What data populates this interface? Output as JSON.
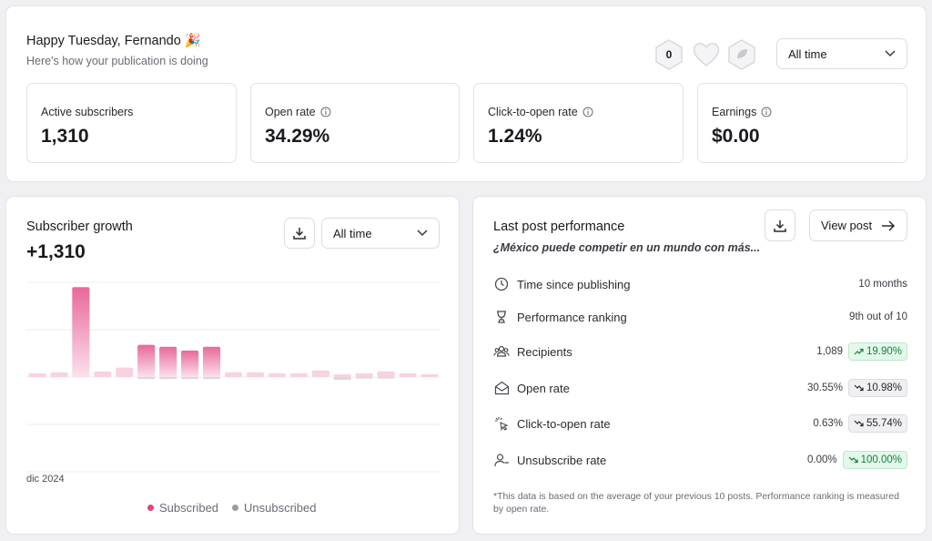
{
  "header": {
    "greeting": "Happy Tuesday, Fernando 🎉",
    "subtitle": "Here's how your publication is doing",
    "badge_count": "0",
    "period": "All time"
  },
  "metrics": [
    {
      "label": "Active subscribers",
      "value": "1,310",
      "info": false
    },
    {
      "label": "Open rate",
      "value": "34.29%",
      "info": true
    },
    {
      "label": "Click-to-open rate",
      "value": "1.24%",
      "info": true
    },
    {
      "label": "Earnings",
      "value": "$0.00",
      "info": true
    }
  ],
  "growth": {
    "title": "Subscriber growth",
    "total": "+1,310",
    "period": "All time",
    "x_label": "dic 2024",
    "legend": [
      {
        "name": "Subscribed",
        "color": "#e0447d"
      },
      {
        "name": "Unsubscribed",
        "color": "#9b9ba6"
      }
    ]
  },
  "chart_data": {
    "type": "bar",
    "values": [
      4,
      5,
      95,
      6,
      10,
      34,
      32,
      28,
      32,
      5,
      5,
      4,
      4,
      7,
      3,
      4,
      6,
      4,
      3
    ],
    "negative_values": [
      0,
      0,
      0,
      0,
      0,
      2,
      2,
      2,
      2,
      0,
      0,
      0,
      0,
      0,
      3,
      1,
      1,
      0,
      0
    ],
    "ylim": [
      -100,
      100
    ],
    "grid": true,
    "series": [
      {
        "name": "Subscribed",
        "color": "#e0447d"
      },
      {
        "name": "Unsubscribed",
        "color": "#9b9ba6"
      }
    ]
  },
  "last_post": {
    "title": "Last post performance",
    "post_name": "¿México puede competir en un mundo con más...",
    "view_label": "View post",
    "rows": [
      {
        "icon": "clock-icon",
        "label": "Time since publishing",
        "value": "10 months",
        "chip": "",
        "chip_type": ""
      },
      {
        "icon": "trophy-icon",
        "label": "Performance ranking",
        "value": "9th out of 10",
        "chip": "",
        "chip_type": ""
      },
      {
        "icon": "users-icon",
        "label": "Recipients",
        "value": "1,089",
        "chip": "19.90%",
        "chip_type": "up"
      },
      {
        "icon": "envelope-open-icon",
        "label": "Open rate",
        "value": "30.55%",
        "chip": "10.98%",
        "chip_type": "down"
      },
      {
        "icon": "cursor-click-icon",
        "label": "Click-to-open rate",
        "value": "0.63%",
        "chip": "55.74%",
        "chip_type": "down"
      },
      {
        "icon": "user-minus-icon",
        "label": "Unsubscribe rate",
        "value": "0.00%",
        "chip": "100.00%",
        "chip_type": "good"
      }
    ],
    "footnote": "*This data is based on the average of your previous 10 posts. Performance ranking is measured by open rate."
  }
}
